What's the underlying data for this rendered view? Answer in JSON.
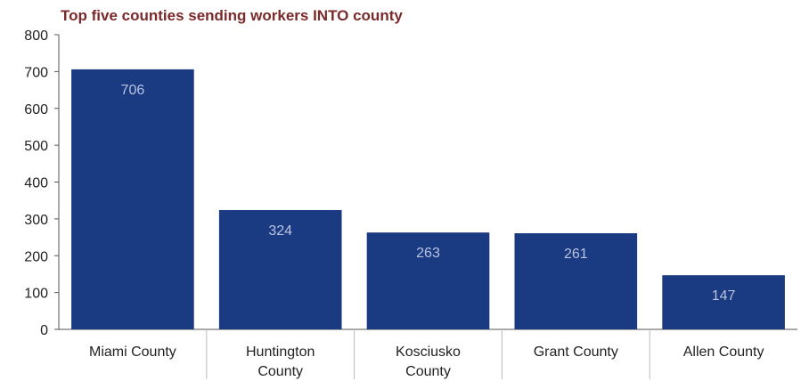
{
  "chart_data": {
    "type": "bar",
    "title": "Top five counties sending workers INTO county",
    "categories": [
      "Miami County",
      "Huntington County",
      "Kosciusko County",
      "Grant County",
      "Allen County"
    ],
    "values": [
      706,
      324,
      263,
      261,
      147
    ],
    "ylim": [
      0,
      800
    ],
    "yticks": [
      0,
      100,
      200,
      300,
      400,
      500,
      600,
      700,
      800
    ],
    "xlabel": "",
    "ylabel": "",
    "grid": false,
    "legend": "none",
    "data_labels": true
  },
  "colors": {
    "bar": "#1a3a82",
    "title": "#7a2a2a",
    "data_label": "#b8c4e0",
    "axis": "#555555"
  }
}
